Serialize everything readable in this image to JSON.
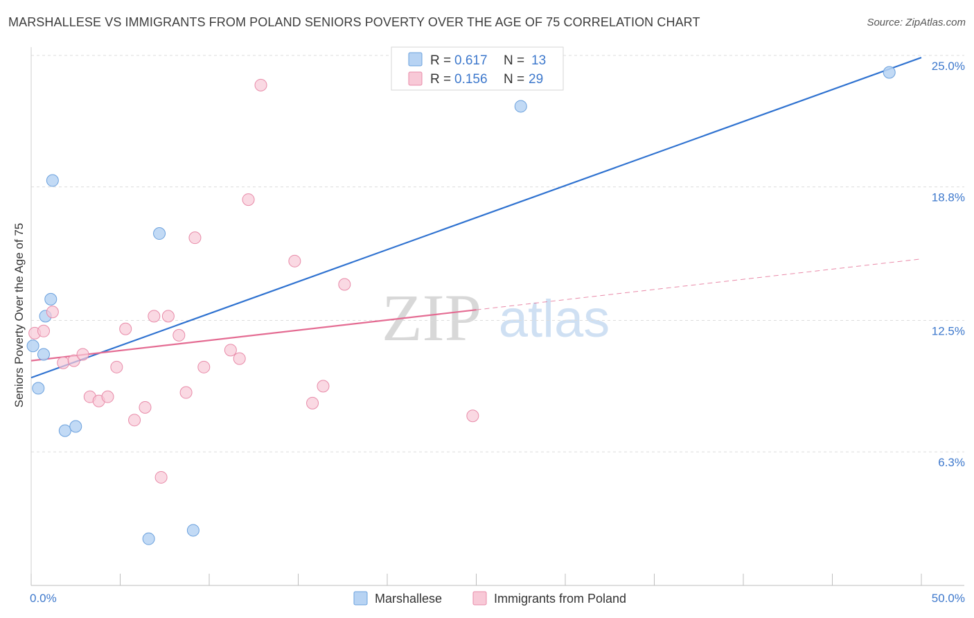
{
  "title": "MARSHALLESE VS IMMIGRANTS FROM POLAND SENIORS POVERTY OVER THE AGE OF 75 CORRELATION CHART",
  "source": "Source: ZipAtlas.com",
  "colors": {
    "blue_fill": "#b7d3f3",
    "blue_stroke": "#6aa0dd",
    "blue_line": "#2f72d0",
    "pink_fill": "#f8c9d7",
    "pink_stroke": "#e88aa8",
    "pink_line": "#e46b92",
    "tick_text": "#3d78cc",
    "grid": "#dcdcdc"
  },
  "legend": {
    "rows": [
      {
        "r_label": "R = ",
        "r_value": "0.617",
        "n_label": "N = ",
        "n_value": "13"
      },
      {
        "r_label": "R = ",
        "r_value": "0.156",
        "n_label": "N = ",
        "n_value": "29"
      }
    ]
  },
  "watermark": {
    "zip": "ZIP",
    "atlas": "atlas"
  },
  "chart_data": {
    "type": "scatter",
    "title": "MARSHALLESE VS IMMIGRANTS FROM POLAND SENIORS POVERTY OVER THE AGE OF 75 CORRELATION CHART",
    "xlabel": "",
    "ylabel": "Seniors Poverty Over the Age of 75",
    "xlim": [
      0,
      50
    ],
    "ylim": [
      0,
      25
    ],
    "x_tick_labels": [
      "0.0%",
      "50.0%"
    ],
    "y_ticks": [
      6.3,
      12.5,
      18.8,
      25.0
    ],
    "y_tick_labels": [
      "6.3%",
      "12.5%",
      "18.8%",
      "25.0%"
    ],
    "series": [
      {
        "name": "Marshallese",
        "color": "blue",
        "points": [
          [
            0.1,
            11.3
          ],
          [
            0.7,
            10.9
          ],
          [
            0.4,
            9.3
          ],
          [
            0.8,
            12.7
          ],
          [
            1.1,
            13.5
          ],
          [
            1.2,
            19.1
          ],
          [
            1.9,
            7.3
          ],
          [
            2.5,
            7.5
          ],
          [
            6.6,
            2.2
          ],
          [
            7.2,
            16.6
          ],
          [
            9.1,
            2.6
          ],
          [
            27.5,
            22.6
          ],
          [
            48.2,
            24.2
          ]
        ],
        "trend": {
          "x0": 0,
          "y0": 9.8,
          "x1": 50,
          "y1": 24.9,
          "dashed_from": null
        }
      },
      {
        "name": "Immigrants from Poland",
        "color": "pink",
        "points": [
          [
            0.2,
            11.9
          ],
          [
            0.7,
            12.0
          ],
          [
            1.2,
            12.9
          ],
          [
            1.8,
            10.5
          ],
          [
            2.4,
            10.6
          ],
          [
            2.9,
            10.9
          ],
          [
            3.3,
            8.9
          ],
          [
            3.8,
            8.7
          ],
          [
            4.3,
            8.9
          ],
          [
            4.8,
            10.3
          ],
          [
            5.3,
            12.1
          ],
          [
            5.8,
            7.8
          ],
          [
            6.4,
            8.4
          ],
          [
            6.9,
            12.7
          ],
          [
            7.3,
            5.1
          ],
          [
            7.7,
            12.7
          ],
          [
            8.3,
            11.8
          ],
          [
            8.7,
            9.1
          ],
          [
            9.2,
            16.4
          ],
          [
            9.7,
            10.3
          ],
          [
            11.2,
            11.1
          ],
          [
            11.7,
            10.7
          ],
          [
            12.2,
            18.2
          ],
          [
            12.9,
            23.6
          ],
          [
            14.8,
            15.3
          ],
          [
            15.8,
            8.6
          ],
          [
            16.4,
            9.4
          ],
          [
            17.6,
            14.2
          ],
          [
            24.8,
            8.0
          ]
        ],
        "trend": {
          "x0": 0,
          "y0": 10.6,
          "x1": 50,
          "y1": 15.4,
          "dashed_from": 25
        }
      }
    ],
    "grid": true,
    "legend_position": "top-center"
  }
}
